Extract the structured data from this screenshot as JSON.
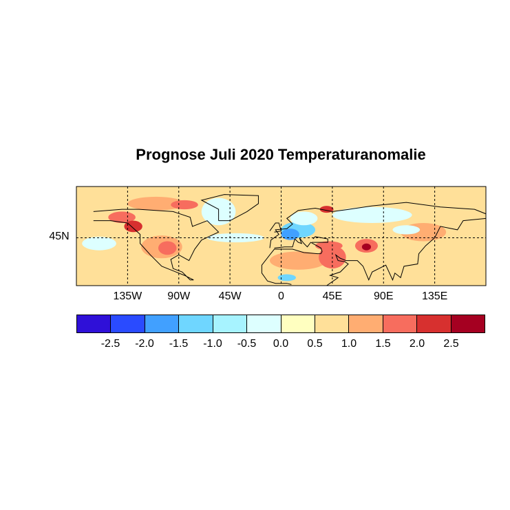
{
  "title": "Prognose Juli 2020 Temperaturanomalie",
  "map": {
    "lon_ticks": [
      {
        "lon": -135,
        "label": "135W"
      },
      {
        "lon": -90,
        "label": "90W"
      },
      {
        "lon": -45,
        "label": "45W"
      },
      {
        "lon": 0,
        "label": "0"
      },
      {
        "lon": 45,
        "label": "45E"
      },
      {
        "lon": 90,
        "label": "90E"
      },
      {
        "lon": 135,
        "label": "135E"
      }
    ],
    "lat_ticks": [
      {
        "lat": 45,
        "label": "45N"
      }
    ],
    "lon_range": [
      -180,
      180
    ],
    "lat_range": [
      3,
      90
    ],
    "gridlines": "dashed",
    "anomaly_regions": [
      {
        "lon": -110,
        "lat": 75,
        "rlon": 25,
        "rlat": 6,
        "value": 1.2
      },
      {
        "lon": -85,
        "lat": 74,
        "rlon": 12,
        "rlat": 4,
        "value": 1.7
      },
      {
        "lon": -140,
        "lat": 63,
        "rlon": 12,
        "rlat": 5,
        "value": 1.7
      },
      {
        "lon": -130,
        "lat": 55,
        "rlon": 8,
        "rlat": 5,
        "value": 2.0
      },
      {
        "lon": -105,
        "lat": 37,
        "rlon": 18,
        "rlat": 10,
        "value": 1.2
      },
      {
        "lon": -100,
        "lat": 36,
        "rlon": 8,
        "rlat": 6,
        "value": 1.7
      },
      {
        "lon": -160,
        "lat": 40,
        "rlon": 15,
        "rlat": 6,
        "value": -0.3
      },
      {
        "lon": -55,
        "lat": 68,
        "rlon": 15,
        "rlat": 12,
        "value": -0.3
      },
      {
        "lon": -40,
        "lat": 45,
        "rlon": 25,
        "rlat": 4,
        "value": -0.3
      },
      {
        "lon": 15,
        "lat": 52,
        "rlon": 15,
        "rlat": 7,
        "value": -1.2
      },
      {
        "lon": 8,
        "lat": 48,
        "rlon": 8,
        "rlat": 5,
        "value": -1.7
      },
      {
        "lon": 20,
        "lat": 62,
        "rlon": 12,
        "rlat": 6,
        "value": -0.3
      },
      {
        "lon": 40,
        "lat": 70,
        "rlon": 6,
        "rlat": 3,
        "value": 2.2
      },
      {
        "lon": 80,
        "lat": 65,
        "rlon": 35,
        "rlat": 7,
        "value": -0.3
      },
      {
        "lon": 15,
        "lat": 25,
        "rlon": 25,
        "rlat": 8,
        "value": 1.2
      },
      {
        "lon": 45,
        "lat": 28,
        "rlon": 12,
        "rlat": 10,
        "value": 1.7
      },
      {
        "lon": 42,
        "lat": 38,
        "rlon": 12,
        "rlat": 4,
        "value": 1.7
      },
      {
        "lon": 75,
        "lat": 38,
        "rlon": 10,
        "rlat": 6,
        "value": 1.7
      },
      {
        "lon": 75,
        "lat": 37,
        "rlon": 4,
        "rlat": 3,
        "value": 2.7
      },
      {
        "lon": 125,
        "lat": 50,
        "rlon": 20,
        "rlat": 8,
        "value": 1.2
      },
      {
        "lon": 5,
        "lat": 10,
        "rlon": 8,
        "rlat": 3,
        "value": -1.2
      },
      {
        "lon": 110,
        "lat": 52,
        "rlon": 12,
        "rlat": 4,
        "value": -0.3
      }
    ]
  },
  "colorbar": {
    "colors": [
      "#2F10D8",
      "#2A4BFF",
      "#41A0FF",
      "#6FD6FF",
      "#A7F3FF",
      "#DDFFFF",
      "#FFFFC0",
      "#FFE099",
      "#FFAD72",
      "#F76D5E",
      "#D7302F",
      "#A50021"
    ],
    "bounds": [
      -3.0,
      -2.5,
      -2.0,
      -1.5,
      -1.0,
      -0.5,
      0.0,
      0.5,
      1.0,
      1.5,
      2.0,
      2.5,
      3.0
    ],
    "labels": [
      "-2.5",
      "-2.0",
      "-1.5",
      "-1.0",
      "-0.5",
      "0.0",
      "0.5",
      "1.0",
      "1.5",
      "2.0",
      "2.5"
    ]
  },
  "background_value": 0.7
}
